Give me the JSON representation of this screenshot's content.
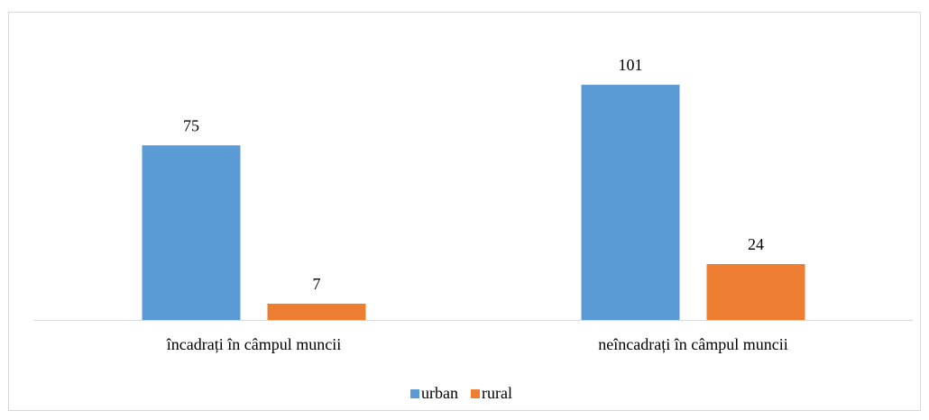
{
  "chart_data": {
    "type": "bar",
    "categories": [
      "încadrați în câmpul muncii",
      "neîncadrați în câmpul muncii"
    ],
    "series": [
      {
        "name": "urban",
        "color": "#5b9bd5",
        "values": [
          75,
          101
        ]
      },
      {
        "name": "rural",
        "color": "#ed7d31",
        "values": [
          7,
          24
        ]
      }
    ],
    "ylim": [
      0,
      120
    ],
    "legend": "bottom"
  }
}
